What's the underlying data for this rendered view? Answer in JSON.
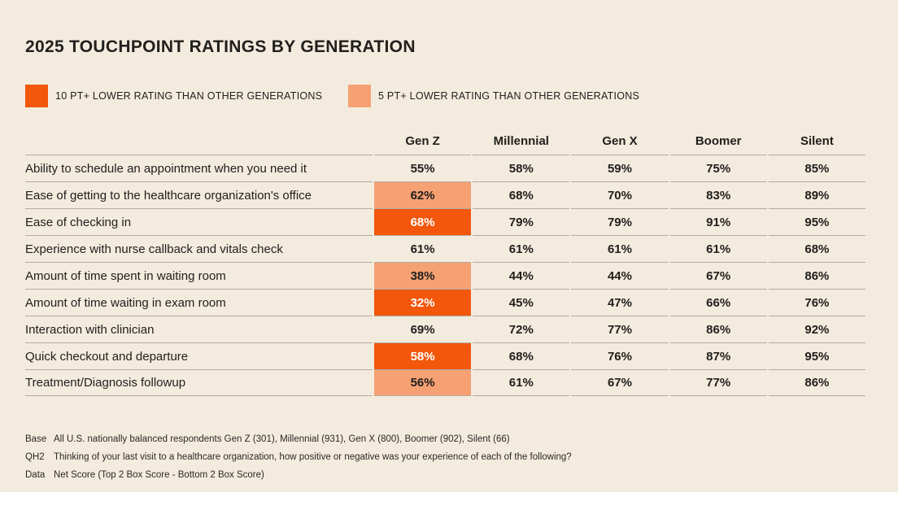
{
  "title": "2025 TOUCHPOINT RATINGS BY GENERATION",
  "legend": {
    "items": [
      {
        "name": "10pt-lower",
        "label": "10 PT+ LOWER RATING THAN OTHER GENERATIONS",
        "color": "#F2570C"
      },
      {
        "name": "5pt-lower",
        "label": "5 PT+ LOWER RATING THAN OTHER GENERATIONS",
        "color": "#F6A173"
      }
    ]
  },
  "colors": {
    "background": "#F4EBDF",
    "gridline": "#B2ABA3",
    "text": "#21201D",
    "highlight_text_on_dark": "#FFFFFF"
  },
  "chart_data": {
    "type": "table",
    "title": "2025 TOUCHPOINT RATINGS BY GENERATION",
    "legend_position": "top",
    "columns": [
      "Gen Z",
      "Millennial",
      "Gen X",
      "Boomer",
      "Silent"
    ],
    "rows": [
      {
        "label": "Ability to schedule an appointment when you need it",
        "values": [
          "55%",
          "58%",
          "59%",
          "75%",
          "85%"
        ],
        "genz_highlight": "none"
      },
      {
        "label": "Ease of getting to the healthcare organization's office",
        "values": [
          "62%",
          "68%",
          "70%",
          "83%",
          "89%"
        ],
        "genz_highlight": "5pt"
      },
      {
        "label": "Ease of checking in",
        "values": [
          "68%",
          "79%",
          "79%",
          "91%",
          "95%"
        ],
        "genz_highlight": "10pt"
      },
      {
        "label": "Experience with nurse callback and vitals check",
        "values": [
          "61%",
          "61%",
          "61%",
          "61%",
          "68%"
        ],
        "genz_highlight": "none"
      },
      {
        "label": "Amount of time spent in waiting room",
        "values": [
          "38%",
          "44%",
          "44%",
          "67%",
          "86%"
        ],
        "genz_highlight": "5pt"
      },
      {
        "label": "Amount of time waiting in exam room",
        "values": [
          "32%",
          "45%",
          "47%",
          "66%",
          "76%"
        ],
        "genz_highlight": "10pt"
      },
      {
        "label": "Interaction with clinician",
        "values": [
          "69%",
          "72%",
          "77%",
          "86%",
          "92%"
        ],
        "genz_highlight": "none"
      },
      {
        "label": "Quick checkout and departure",
        "values": [
          "58%",
          "68%",
          "76%",
          "87%",
          "95%"
        ],
        "genz_highlight": "10pt"
      },
      {
        "label": "Treatment/Diagnosis followup",
        "values": [
          "56%",
          "61%",
          "67%",
          "77%",
          "86%"
        ],
        "genz_highlight": "5pt"
      }
    ]
  },
  "footnotes": [
    {
      "label": "Base",
      "text": "All U.S. nationally balanced respondents Gen Z (301), Millennial (931), Gen X (800), Boomer (902), Silent (66)"
    },
    {
      "label": "QH2",
      "text": "Thinking of your last visit to a healthcare organization, how positive or negative was your experience of each of the following?"
    },
    {
      "label": "Data",
      "text": "Net Score (Top 2 Box Score - Bottom 2 Box Score)"
    }
  ]
}
